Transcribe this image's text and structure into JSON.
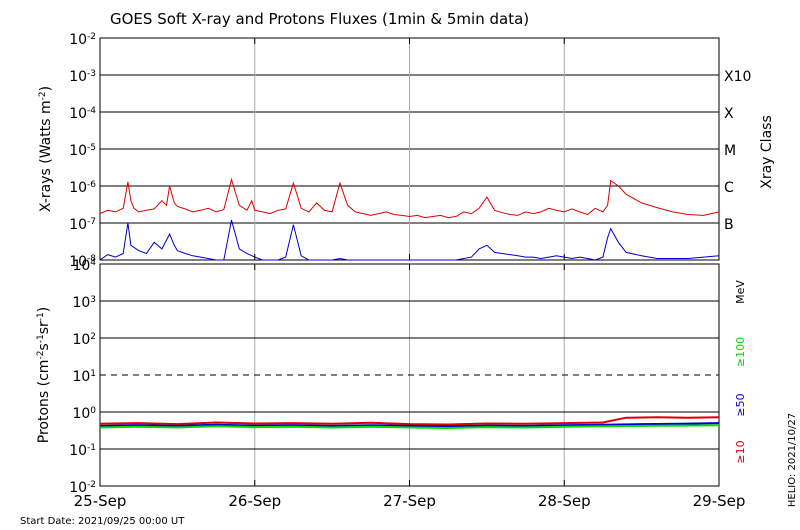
{
  "title": "GOES Soft X-ray and Protons Fluxes   (1min & 5min data)",
  "start_date": "Start Date: 2021/09/25 00:00 UT",
  "credit": "HELIO: 2021/10/27",
  "x_axis": {
    "tick_labels": [
      "25-Sep",
      "26-Sep",
      "27-Sep",
      "28-Sep",
      "29-Sep"
    ],
    "range_days": [
      0,
      4
    ]
  },
  "xray_panel": {
    "ylabel_main": "X-rays (Watts m",
    "ylabel_sup": "-2",
    "ylabel_end": ")",
    "tick_exponents": [
      "-2",
      "-3",
      "-4",
      "-5",
      "-6",
      "-7",
      "-8"
    ],
    "right_label": "Xray Class",
    "class_labels": [
      "X10",
      "X",
      "M",
      "C",
      "B"
    ]
  },
  "proton_panel": {
    "ylabel_parts": [
      {
        "t": "Protons (cm",
        "sup": false
      },
      {
        "t": "-2",
        "sup": true
      },
      {
        "t": "s",
        "sup": false
      },
      {
        "t": "-1",
        "sup": true
      },
      {
        "t": "sr",
        "sup": false
      },
      {
        "t": "-1",
        "sup": true
      },
      {
        "t": ")",
        "sup": false
      }
    ],
    "tick_mantissa": [
      "10",
      "10",
      "10",
      "10",
      "10",
      "10",
      "10"
    ],
    "tick_exponents": [
      "4",
      "3",
      "2",
      "1",
      "0",
      "-1",
      "-2"
    ],
    "energy_unit": "MeV",
    "energy_labels": [
      {
        "text": "≥100",
        "color": "#00dd00"
      },
      {
        "text": "≥50",
        "color": "#0000cc"
      },
      {
        "text": "≥10",
        "color": "#dd0000"
      }
    ]
  },
  "chart_data": [
    {
      "type": "line",
      "panel": "xray",
      "y_scale": "log",
      "ylim": [
        1e-08,
        0.01
      ],
      "xlim_days": [
        0,
        4
      ],
      "series": [
        {
          "color": "#dd0000",
          "x_days": [
            0.0,
            0.05,
            0.1,
            0.15,
            0.18,
            0.2,
            0.22,
            0.25,
            0.3,
            0.35,
            0.4,
            0.43,
            0.45,
            0.48,
            0.5,
            0.55,
            0.6,
            0.65,
            0.7,
            0.75,
            0.8,
            0.85,
            0.9,
            0.95,
            0.98,
            1.0,
            1.05,
            1.1,
            1.15,
            1.2,
            1.25,
            1.3,
            1.35,
            1.4,
            1.45,
            1.5,
            1.55,
            1.6,
            1.65,
            1.7,
            1.75,
            1.8,
            1.85,
            1.9,
            1.95,
            2.0,
            2.05,
            2.1,
            2.15,
            2.2,
            2.25,
            2.3,
            2.35,
            2.4,
            2.45,
            2.5,
            2.55,
            2.6,
            2.65,
            2.7,
            2.75,
            2.8,
            2.85,
            2.9,
            2.95,
            3.0,
            3.05,
            3.1,
            3.15,
            3.2,
            3.25,
            3.28,
            3.3,
            3.35,
            3.4,
            3.5,
            3.6,
            3.7,
            3.8,
            3.9,
            4.0
          ],
          "y": [
            1.8e-07,
            2.2e-07,
            2e-07,
            2.5e-07,
            1.3e-06,
            4e-07,
            2.5e-07,
            2e-07,
            2.2e-07,
            2.4e-07,
            4e-07,
            3e-07,
            1e-06,
            3.5e-07,
            2.8e-07,
            2.4e-07,
            2e-07,
            2.2e-07,
            2.5e-07,
            2e-07,
            2.3e-07,
            1.5e-06,
            3e-07,
            2.2e-07,
            4e-07,
            2.2e-07,
            2e-07,
            1.8e-07,
            2.2e-07,
            2.4e-07,
            1.2e-06,
            2.5e-07,
            2e-07,
            3.5e-07,
            2.2e-07,
            2e-07,
            1.2e-06,
            3e-07,
            2e-07,
            1.8e-07,
            1.6e-07,
            1.8e-07,
            2e-07,
            1.7e-07,
            1.6e-07,
            1.5e-07,
            1.6e-07,
            1.4e-07,
            1.5e-07,
            1.6e-07,
            1.4e-07,
            1.5e-07,
            2e-07,
            1.8e-07,
            2.5e-07,
            5e-07,
            2.2e-07,
            1.9e-07,
            1.7e-07,
            1.6e-07,
            2e-07,
            1.8e-07,
            2e-07,
            2.5e-07,
            2.2e-07,
            2e-07,
            2.4e-07,
            2e-07,
            1.7e-07,
            2.5e-07,
            2e-07,
            3e-07,
            1.4e-06,
            1e-06,
            6e-07,
            3.5e-07,
            2.6e-07,
            2e-07,
            1.7e-07,
            1.6e-07,
            2e-07
          ]
        },
        {
          "color": "#0000cc",
          "x_days": [
            0.0,
            0.05,
            0.1,
            0.15,
            0.18,
            0.2,
            0.25,
            0.3,
            0.35,
            0.4,
            0.45,
            0.48,
            0.5,
            0.55,
            0.6,
            0.65,
            0.7,
            0.75,
            0.8,
            0.85,
            0.9,
            0.95,
            1.0,
            1.05,
            1.1,
            1.15,
            1.2,
            1.25,
            1.3,
            1.35,
            1.4,
            1.45,
            1.5,
            1.55,
            1.6,
            1.65,
            1.7,
            1.75,
            1.8,
            1.85,
            1.9,
            1.95,
            2.0,
            2.1,
            2.2,
            2.3,
            2.4,
            2.45,
            2.5,
            2.55,
            2.6,
            2.65,
            2.7,
            2.75,
            2.8,
            2.85,
            2.9,
            2.95,
            3.0,
            3.05,
            3.1,
            3.15,
            3.2,
            3.25,
            3.28,
            3.3,
            3.35,
            3.4,
            3.5,
            3.6,
            3.7,
            3.8,
            3.9,
            4.0
          ],
          "y": [
            1e-08,
            1.4e-08,
            1.2e-08,
            1.5e-08,
            1e-07,
            2.5e-08,
            1.8e-08,
            1.5e-08,
            3e-08,
            2e-08,
            5e-08,
            2.5e-08,
            1.8e-08,
            1.5e-08,
            1.3e-08,
            1.2e-08,
            1.1e-08,
            1e-08,
            1e-08,
            1.2e-07,
            2e-08,
            1.5e-08,
            1.2e-08,
            1e-08,
            1e-08,
            1e-08,
            1.2e-08,
            9e-08,
            1.3e-08,
            1e-08,
            1e-08,
            1e-08,
            1e-08,
            1.1e-08,
            1e-08,
            1e-08,
            1e-08,
            1e-08,
            1e-08,
            1e-08,
            1e-08,
            1e-08,
            1e-08,
            1e-08,
            1e-08,
            1e-08,
            1.2e-08,
            2e-08,
            2.5e-08,
            1.6e-08,
            1.5e-08,
            1.4e-08,
            1.3e-08,
            1.2e-08,
            1.2e-08,
            1.1e-08,
            1.2e-08,
            1.3e-08,
            1.2e-08,
            1.1e-08,
            1.2e-08,
            1.1e-08,
            1e-08,
            1.2e-08,
            4e-08,
            7e-08,
            3e-08,
            1.6e-08,
            1.3e-08,
            1.1e-08,
            1.1e-08,
            1.1e-08,
            1.2e-08,
            1.3e-08
          ]
        }
      ]
    },
    {
      "type": "line",
      "panel": "protons",
      "y_scale": "log",
      "ylim": [
        0.01,
        10000
      ],
      "xlim_days": [
        0,
        4
      ],
      "reference_line": 10,
      "series": [
        {
          "color": "#dd0000",
          "x_days": [
            0.0,
            0.25,
            0.5,
            0.75,
            1.0,
            1.25,
            1.5,
            1.75,
            2.0,
            2.25,
            2.5,
            2.75,
            3.0,
            3.25,
            3.4,
            3.6,
            3.8,
            4.0
          ],
          "y": [
            0.48,
            0.5,
            0.47,
            0.52,
            0.49,
            0.5,
            0.48,
            0.51,
            0.47,
            0.46,
            0.49,
            0.48,
            0.5,
            0.52,
            0.7,
            0.72,
            0.7,
            0.72
          ]
        },
        {
          "color": "#0000cc",
          "x_days": [
            0.0,
            0.25,
            0.5,
            0.75,
            1.0,
            1.25,
            1.5,
            1.75,
            2.0,
            2.25,
            2.5,
            2.75,
            3.0,
            3.25,
            3.5,
            3.75,
            4.0
          ],
          "y": [
            0.42,
            0.44,
            0.42,
            0.45,
            0.43,
            0.44,
            0.42,
            0.44,
            0.42,
            0.41,
            0.43,
            0.42,
            0.44,
            0.45,
            0.47,
            0.48,
            0.5
          ]
        },
        {
          "color": "#00dd00",
          "x_days": [
            0.0,
            0.25,
            0.5,
            0.75,
            1.0,
            1.25,
            1.5,
            1.75,
            2.0,
            2.25,
            2.5,
            2.75,
            3.0,
            3.25,
            3.5,
            3.75,
            4.0
          ],
          "y": [
            0.38,
            0.4,
            0.38,
            0.41,
            0.39,
            0.4,
            0.38,
            0.4,
            0.38,
            0.37,
            0.39,
            0.38,
            0.4,
            0.41,
            0.42,
            0.43,
            0.44
          ]
        }
      ]
    }
  ]
}
